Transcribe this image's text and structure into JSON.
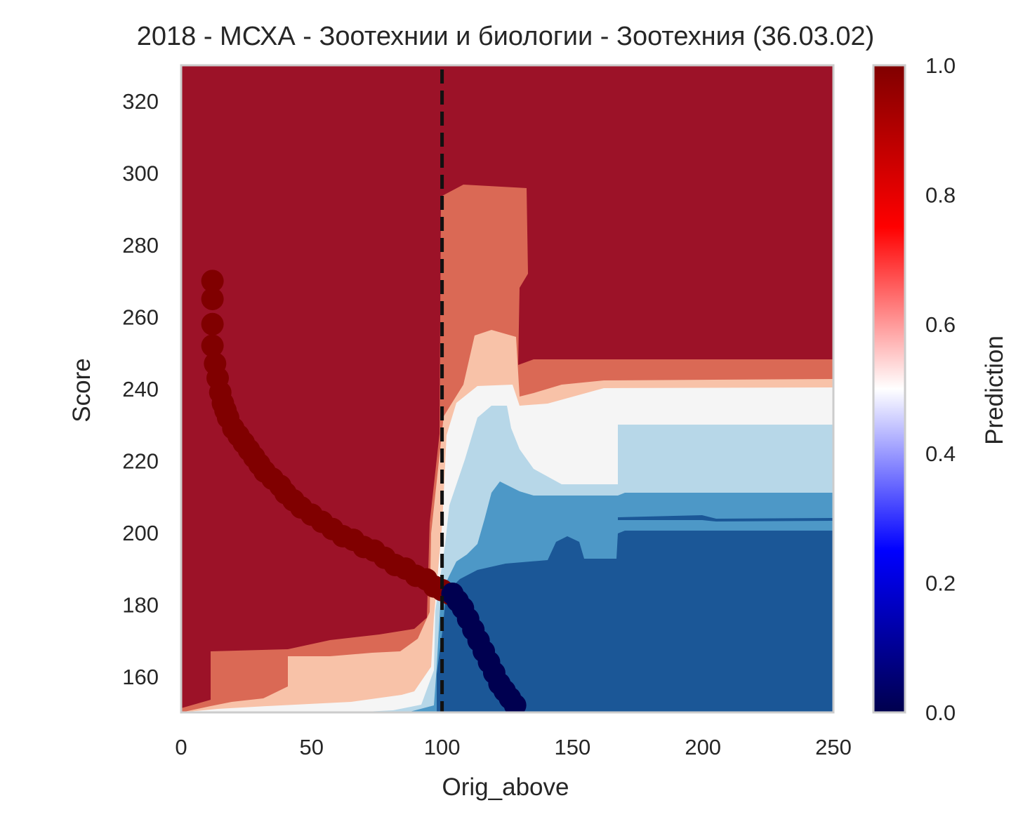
{
  "chart_data": {
    "type": "contour",
    "title": "2018 - МСХА - Зоотехнии и биологии - Зоотехния (36.03.02)",
    "xlabel": "Orig_above",
    "ylabel": "Score",
    "xlim": [
      0,
      250
    ],
    "ylim": [
      150,
      330
    ],
    "x_ticks": [
      0,
      50,
      100,
      150,
      200,
      250
    ],
    "y_ticks": [
      160,
      180,
      200,
      220,
      240,
      260,
      280,
      300,
      320
    ],
    "grid": false,
    "colorbar": {
      "label": "Prediction",
      "range": [
        0.0,
        1.0
      ],
      "ticks": [
        "0.0",
        "0.2",
        "0.4",
        "0.6",
        "0.8",
        "1.0"
      ],
      "colormap": "seismic"
    },
    "threshold_line": {
      "x": 100,
      "style": "dashed",
      "color": "#111111"
    },
    "contour_levels": [
      {
        "level": "0.0-0.2",
        "color": "#1b5797"
      },
      {
        "level": "0.2-0.4",
        "color": "#4d98c7"
      },
      {
        "level": "0.4-0.5",
        "color": "#b7d7e8"
      },
      {
        "level": "0.5-0.6",
        "color": "#f5f5f5"
      },
      {
        "level": "0.6-0.7",
        "color": "#f8c2a8"
      },
      {
        "level": "0.7-0.9",
        "color": "#da6955"
      },
      {
        "level": "0.9-1.0",
        "color": "#9c1228"
      }
    ],
    "scatter_series": [
      {
        "prediction": 1.0,
        "color": "#800000",
        "points": [
          [
            12,
            270
          ],
          [
            12,
            265
          ],
          [
            12,
            258
          ],
          [
            12,
            252
          ],
          [
            13,
            247
          ],
          [
            14,
            243
          ],
          [
            15,
            239
          ],
          [
            16,
            236
          ],
          [
            17,
            234
          ],
          [
            18,
            232
          ],
          [
            20,
            229
          ],
          [
            22,
            227
          ],
          [
            24,
            225
          ],
          [
            26,
            223
          ],
          [
            28,
            221
          ],
          [
            30,
            219
          ],
          [
            32,
            217
          ],
          [
            35,
            215
          ],
          [
            38,
            213
          ],
          [
            40,
            211
          ],
          [
            43,
            209
          ],
          [
            46,
            207
          ],
          [
            50,
            205
          ],
          [
            54,
            203
          ],
          [
            58,
            201
          ],
          [
            62,
            199
          ],
          [
            66,
            198
          ],
          [
            70,
            196
          ],
          [
            74,
            195
          ],
          [
            78,
            193
          ],
          [
            82,
            191
          ],
          [
            86,
            190
          ],
          [
            90,
            188
          ],
          [
            94,
            187
          ],
          [
            97,
            185
          ],
          [
            100,
            184
          ],
          [
            103,
            183
          ]
        ]
      },
      {
        "prediction": 0.0,
        "color": "#000050",
        "points": [
          [
            104,
            183
          ],
          [
            106,
            181
          ],
          [
            108,
            179
          ],
          [
            110,
            176
          ],
          [
            112,
            173
          ],
          [
            114,
            170
          ],
          [
            116,
            167
          ],
          [
            118,
            164
          ],
          [
            120,
            161
          ],
          [
            122,
            158
          ],
          [
            124,
            156
          ],
          [
            126,
            154
          ],
          [
            128,
            152
          ]
        ]
      }
    ]
  }
}
